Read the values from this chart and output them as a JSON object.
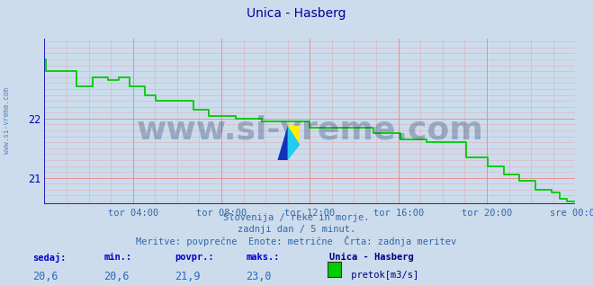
{
  "title": "Unica - Hasberg",
  "background_color": "#ccdcec",
  "plot_bg_color": "#ccdcec",
  "line_color": "#00cc00",
  "line_width": 1.2,
  "axis_color": "#0000cc",
  "grid_color": "#ee8888",
  "xlabel_color": "#3366aa",
  "ylabel_color": "#0000aa",
  "title_color": "#000080",
  "ylim": [
    20.55,
    23.35
  ],
  "yticks": [
    21,
    22
  ],
  "xtick_labels": [
    "tor 04:00",
    "tor 08:00",
    "tor 12:00",
    "tor 16:00",
    "tor 20:00",
    "sre 00:00"
  ],
  "xtick_positions": [
    0.1667,
    0.3333,
    0.5,
    0.6667,
    0.8333,
    1.0
  ],
  "watermark": "www.si-vreme.com",
  "watermark_color": "#1a3a6a",
  "watermark_alpha": 0.3,
  "watermark_fontsize": 26,
  "sidebar_text": "www.si-vreme.com",
  "subtitle1": "Slovenija / reke in morje.",
  "subtitle2": "zadnji dan / 5 minut.",
  "subtitle3": "Meritve: povprečne  Enote: metrične  Črta: zadnja meritev",
  "footer_labels": [
    "sedaj:",
    "min.:",
    "povpr.:",
    "maks.:"
  ],
  "footer_values": [
    "20,6",
    "20,6",
    "21,9",
    "23,0"
  ],
  "footer_series_name": "Unica - Hasberg",
  "footer_series_label": " pretok[m3/s]",
  "footer_series_color": "#00cc00",
  "x_data": [
    0.0,
    0.003,
    0.003,
    0.06,
    0.06,
    0.09,
    0.09,
    0.12,
    0.12,
    0.14,
    0.14,
    0.16,
    0.16,
    0.19,
    0.19,
    0.21,
    0.21,
    0.28,
    0.28,
    0.31,
    0.31,
    0.36,
    0.36,
    0.41,
    0.41,
    0.5,
    0.5,
    0.57,
    0.57,
    0.62,
    0.62,
    0.67,
    0.67,
    0.72,
    0.72,
    0.795,
    0.795,
    0.835,
    0.835,
    0.865,
    0.865,
    0.895,
    0.895,
    0.925,
    0.925,
    0.955,
    0.955,
    0.97,
    0.97,
    0.985,
    0.985,
    1.0
  ],
  "y_data": [
    23.0,
    23.0,
    22.8,
    22.8,
    22.55,
    22.55,
    22.7,
    22.7,
    22.65,
    22.65,
    22.7,
    22.7,
    22.55,
    22.55,
    22.4,
    22.4,
    22.3,
    22.3,
    22.15,
    22.15,
    22.05,
    22.05,
    22.0,
    22.0,
    21.95,
    21.95,
    21.85,
    21.85,
    21.85,
    21.85,
    21.75,
    21.75,
    21.65,
    21.65,
    21.6,
    21.6,
    21.35,
    21.35,
    21.2,
    21.2,
    21.05,
    21.05,
    20.95,
    20.95,
    20.8,
    20.8,
    20.75,
    20.75,
    20.65,
    20.65,
    20.6,
    20.6
  ]
}
